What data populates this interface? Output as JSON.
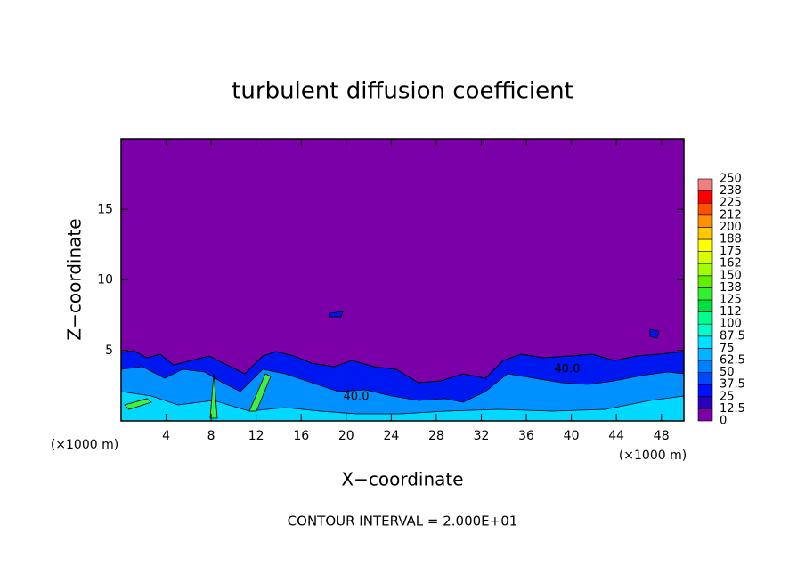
{
  "chart_data": {
    "type": "contour",
    "title": "turbulent diffusion coefficient",
    "x_label": "X−coordinate",
    "y_label": "Z−coordinate",
    "x_unit_label": "(×1000 m)",
    "y_unit_label": "(×1000 m)",
    "footnote": "CONTOUR INTERVAL = 2.000E+01",
    "contour_labels": [
      "40.0",
      "40.0"
    ],
    "xlim": [
      0,
      50
    ],
    "xticks": [
      4,
      8,
      12,
      16,
      20,
      24,
      28,
      32,
      36,
      40,
      44,
      48
    ],
    "ylim": [
      0,
      20
    ],
    "yticks": [
      5,
      10,
      15
    ],
    "colorbar": {
      "ticks": [
        0,
        12.5,
        25,
        37.5,
        50,
        62.5,
        75,
        87.5,
        100,
        112,
        125,
        138,
        150,
        162,
        175,
        188,
        200,
        212,
        225,
        238,
        250
      ],
      "colors": [
        "#7c00a8",
        "#2a00c0",
        "#0010ff",
        "#0048ff",
        "#0080ff",
        "#00b4ff",
        "#00e0ff",
        "#00ffc8",
        "#00ff90",
        "#00e040",
        "#30f030",
        "#60f000",
        "#a0ff00",
        "#d8ff00",
        "#ffff00",
        "#ffc800",
        "#ff9000",
        "#ff5000",
        "#ff0000",
        "#f08080"
      ]
    }
  }
}
